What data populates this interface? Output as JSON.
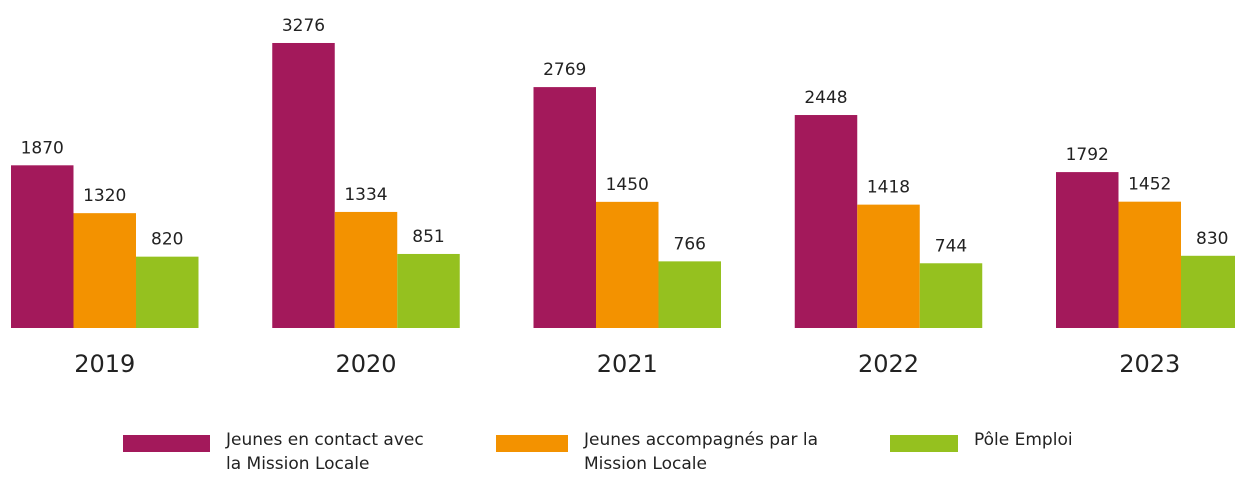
{
  "chart_data": {
    "type": "bar",
    "categories": [
      "2019",
      "2020",
      "2021",
      "2022",
      "2023"
    ],
    "series": [
      {
        "name": "Jeunes en contact avec la Mission Locale",
        "color": "#a3195b",
        "values": [
          1870,
          3276,
          2769,
          2448,
          1792
        ]
      },
      {
        "name": "Jeunes accompagnés par la Mission Locale",
        "color": "#f39200",
        "values": [
          1320,
          1334,
          1450,
          1418,
          1452
        ]
      },
      {
        "name": "Pôle Emploi",
        "color": "#95c11f",
        "values": [
          820,
          851,
          766,
          744,
          830
        ]
      }
    ],
    "ylim": [
      0,
      3500
    ],
    "legend": "bottom"
  }
}
